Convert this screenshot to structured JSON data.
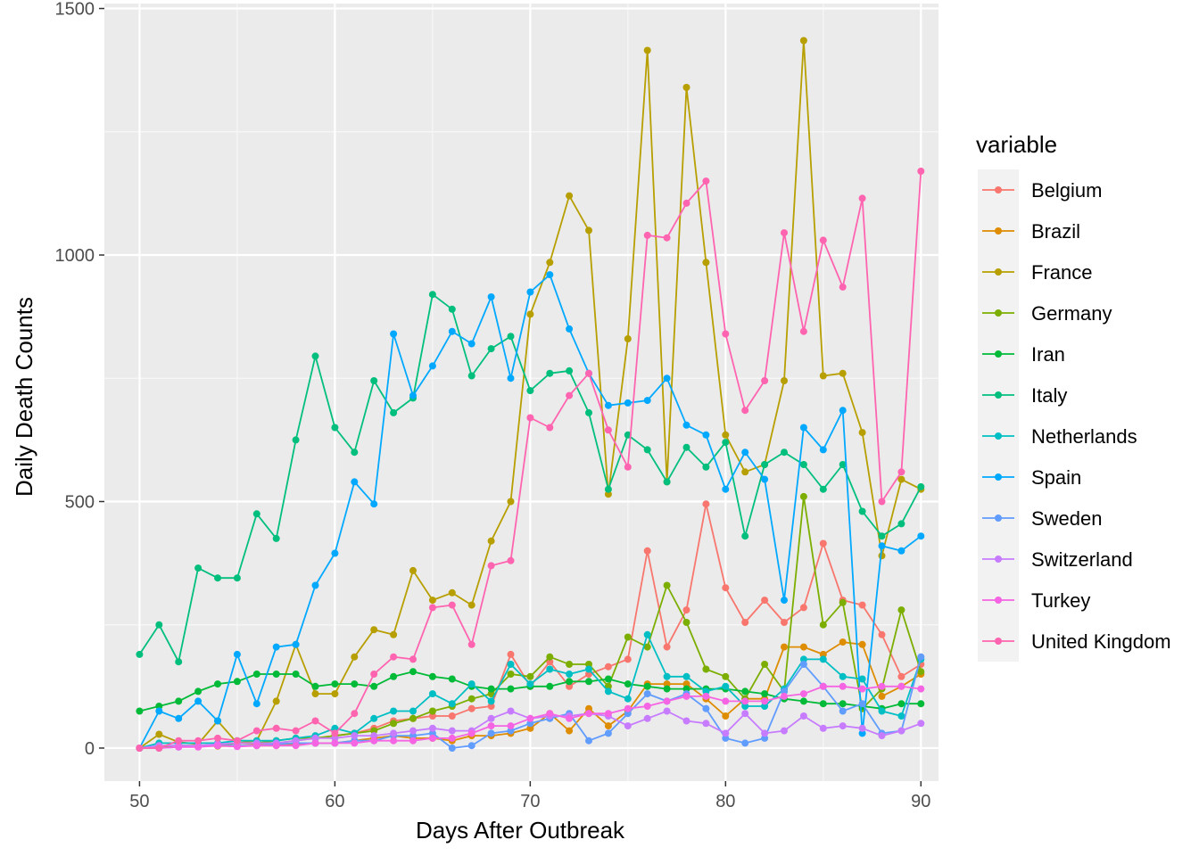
{
  "chart_data": {
    "type": "line",
    "xlabel": "Days After Outbreak",
    "ylabel": "Daily Death Counts",
    "xlim": [
      48.2,
      90.9
    ],
    "ylim": [
      -67,
      1510
    ],
    "x_ticks": [
      50,
      60,
      70,
      80,
      90
    ],
    "y_ticks": [
      0,
      500,
      1000,
      1500
    ],
    "grid": true,
    "legend": {
      "title": "variable",
      "position": "right"
    },
    "x": [
      50,
      51,
      52,
      53,
      54,
      55,
      56,
      57,
      58,
      59,
      60,
      61,
      62,
      63,
      64,
      65,
      66,
      67,
      68,
      69,
      70,
      71,
      72,
      73,
      74,
      75,
      76,
      77,
      78,
      79,
      80,
      81,
      82,
      83,
      84,
      85,
      86,
      87,
      88,
      89,
      90
    ],
    "series": [
      {
        "name": "Belgium",
        "color": "#F8766D",
        "values": [
          0,
          4,
          5,
          4,
          5,
          10,
          8,
          10,
          15,
          20,
          25,
          30,
          40,
          55,
          60,
          65,
          65,
          80,
          85,
          190,
          125,
          175,
          125,
          150,
          165,
          180,
          400,
          205,
          280,
          495,
          325,
          255,
          300,
          255,
          285,
          415,
          300,
          290,
          230,
          145,
          170
        ]
      },
      {
        "name": "Brazil",
        "color": "#DE8C00",
        "values": [
          0,
          2,
          3,
          4,
          4,
          4,
          5,
          5,
          8,
          10,
          10,
          15,
          20,
          25,
          20,
          20,
          15,
          25,
          25,
          30,
          40,
          70,
          35,
          80,
          45,
          75,
          130,
          130,
          130,
          100,
          65,
          100,
          100,
          205,
          205,
          190,
          215,
          210,
          105,
          125,
          150
        ]
      },
      {
        "name": "France",
        "color": "#B79F00",
        "values": [
          0,
          28,
          12,
          8,
          55,
          10,
          15,
          95,
          210,
          110,
          110,
          185,
          240,
          230,
          360,
          300,
          315,
          290,
          420,
          500,
          880,
          985,
          1120,
          1050,
          515,
          830,
          1415,
          540,
          1340,
          985,
          635,
          560,
          575,
          745,
          1435,
          755,
          760,
          640,
          390,
          545,
          525
        ]
      },
      {
        "name": "Germany",
        "color": "#7CAE00",
        "values": [
          0,
          0,
          5,
          5,
          5,
          10,
          10,
          15,
          20,
          20,
          25,
          30,
          35,
          50,
          60,
          75,
          85,
          100,
          110,
          150,
          145,
          185,
          170,
          170,
          125,
          225,
          205,
          330,
          255,
          160,
          145,
          100,
          170,
          115,
          510,
          250,
          295,
          80,
          120,
          280,
          155
        ]
      },
      {
        "name": "Iran",
        "color": "#00BA38",
        "values": [
          75,
          85,
          95,
          115,
          130,
          135,
          150,
          150,
          150,
          125,
          130,
          130,
          125,
          145,
          155,
          145,
          140,
          125,
          120,
          120,
          125,
          125,
          135,
          135,
          140,
          130,
          125,
          120,
          120,
          120,
          120,
          115,
          110,
          100,
          95,
          90,
          90,
          85,
          80,
          90,
          90
        ]
      },
      {
        "name": "Italy",
        "color": "#00BF7D",
        "values": [
          190,
          250,
          175,
          365,
          345,
          345,
          475,
          425,
          625,
          795,
          650,
          600,
          745,
          680,
          710,
          920,
          890,
          755,
          810,
          835,
          725,
          760,
          765,
          680,
          525,
          635,
          605,
          540,
          610,
          570,
          620,
          430,
          575,
          600,
          575,
          525,
          575,
          480,
          430,
          455,
          530
        ]
      },
      {
        "name": "Netherlands",
        "color": "#00BFC4",
        "values": [
          0,
          10,
          10,
          10,
          10,
          15,
          15,
          15,
          20,
          25,
          40,
          30,
          60,
          75,
          75,
          110,
          90,
          130,
          95,
          170,
          130,
          160,
          150,
          160,
          115,
          100,
          230,
          145,
          145,
          115,
          125,
          85,
          85,
          120,
          180,
          180,
          145,
          140,
          75,
          65,
          180
        ]
      },
      {
        "name": "Spain",
        "color": "#00A9FF",
        "values": [
          0,
          75,
          60,
          95,
          55,
          190,
          90,
          205,
          210,
          330,
          395,
          540,
          495,
          840,
          715,
          775,
          845,
          820,
          915,
          750,
          925,
          960,
          850,
          760,
          695,
          700,
          705,
          750,
          655,
          635,
          525,
          600,
          545,
          300,
          650,
          605,
          685,
          30,
          410,
          400,
          430
        ]
      },
      {
        "name": "Sweden",
        "color": "#619CFF",
        "values": [
          0,
          0,
          2,
          4,
          5,
          5,
          5,
          8,
          10,
          10,
          10,
          15,
          15,
          25,
          25,
          30,
          0,
          5,
          30,
          35,
          50,
          60,
          70,
          15,
          30,
          70,
          110,
          95,
          110,
          80,
          20,
          10,
          20,
          115,
          170,
          125,
          75,
          90,
          30,
          35,
          185
        ]
      },
      {
        "name": "Switzerland",
        "color": "#C77CFF",
        "values": [
          0,
          5,
          5,
          5,
          8,
          10,
          10,
          10,
          15,
          20,
          20,
          25,
          25,
          30,
          35,
          40,
          35,
          35,
          60,
          75,
          60,
          65,
          65,
          70,
          65,
          45,
          60,
          75,
          55,
          50,
          30,
          70,
          30,
          35,
          65,
          40,
          45,
          40,
          25,
          35,
          50
        ]
      },
      {
        "name": "Turkey",
        "color": "#F564E3",
        "values": [
          0,
          0,
          2,
          2,
          5,
          3,
          5,
          5,
          5,
          10,
          10,
          10,
          15,
          15,
          15,
          20,
          20,
          30,
          45,
          45,
          60,
          70,
          60,
          70,
          70,
          80,
          85,
          95,
          105,
          105,
          95,
          95,
          95,
          105,
          110,
          125,
          125,
          120,
          125,
          125,
          120
        ]
      },
      {
        "name": "United Kingdom",
        "color": "#FF64B0",
        "values": [
          0,
          0,
          15,
          15,
          20,
          15,
          35,
          40,
          35,
          55,
          30,
          70,
          150,
          185,
          180,
          285,
          290,
          210,
          370,
          380,
          670,
          650,
          715,
          760,
          645,
          570,
          1040,
          1035,
          1105,
          1150,
          840,
          685,
          745,
          1045,
          845,
          1030,
          935,
          1115,
          500,
          560,
          1170
        ]
      }
    ]
  }
}
